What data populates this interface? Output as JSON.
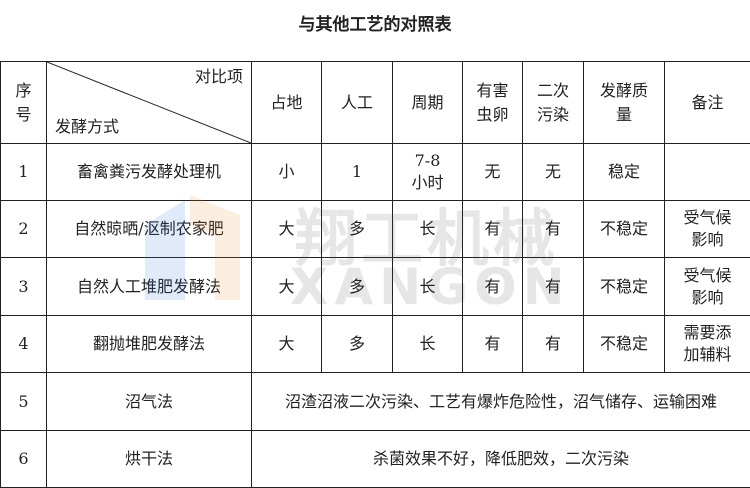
{
  "title": "与其他工艺的对照表",
  "watermark": {
    "cn": "翔工机械",
    "en": "XANGON"
  },
  "header": {
    "index": "序号",
    "diag_top": "对比项",
    "diag_bottom": "发酵方式",
    "cols": [
      "占地",
      "人工",
      "周期",
      "有害虫卵",
      "二次污染",
      "发酵质量",
      "备注"
    ]
  },
  "rows": [
    {
      "no": "1",
      "method": "畜禽粪污发酵处理机",
      "cells": [
        "小",
        "1",
        "7-8小时",
        "无",
        "无",
        "稳定",
        ""
      ]
    },
    {
      "no": "2",
      "method": "自然晾晒/沤制农家肥",
      "cells": [
        "大",
        "多",
        "长",
        "有",
        "有",
        "不稳定",
        "受气候影响"
      ]
    },
    {
      "no": "3",
      "method": "自然人工堆肥发酵法",
      "cells": [
        "大",
        "多",
        "长",
        "有",
        "有",
        "不稳定",
        "受气候影响"
      ]
    },
    {
      "no": "4",
      "method": "翻抛堆肥发酵法",
      "cells": [
        "大",
        "多",
        "长",
        "有",
        "有",
        "不稳定",
        "需要添加辅料"
      ]
    },
    {
      "no": "5",
      "method": "沼气法",
      "note": "沼渣沼液二次污染、工艺有爆炸危险性，沼气储存、运输困难"
    },
    {
      "no": "6",
      "method": "烘干法",
      "note": "杀菌效果不好，降低肥效，二次污染"
    }
  ]
}
